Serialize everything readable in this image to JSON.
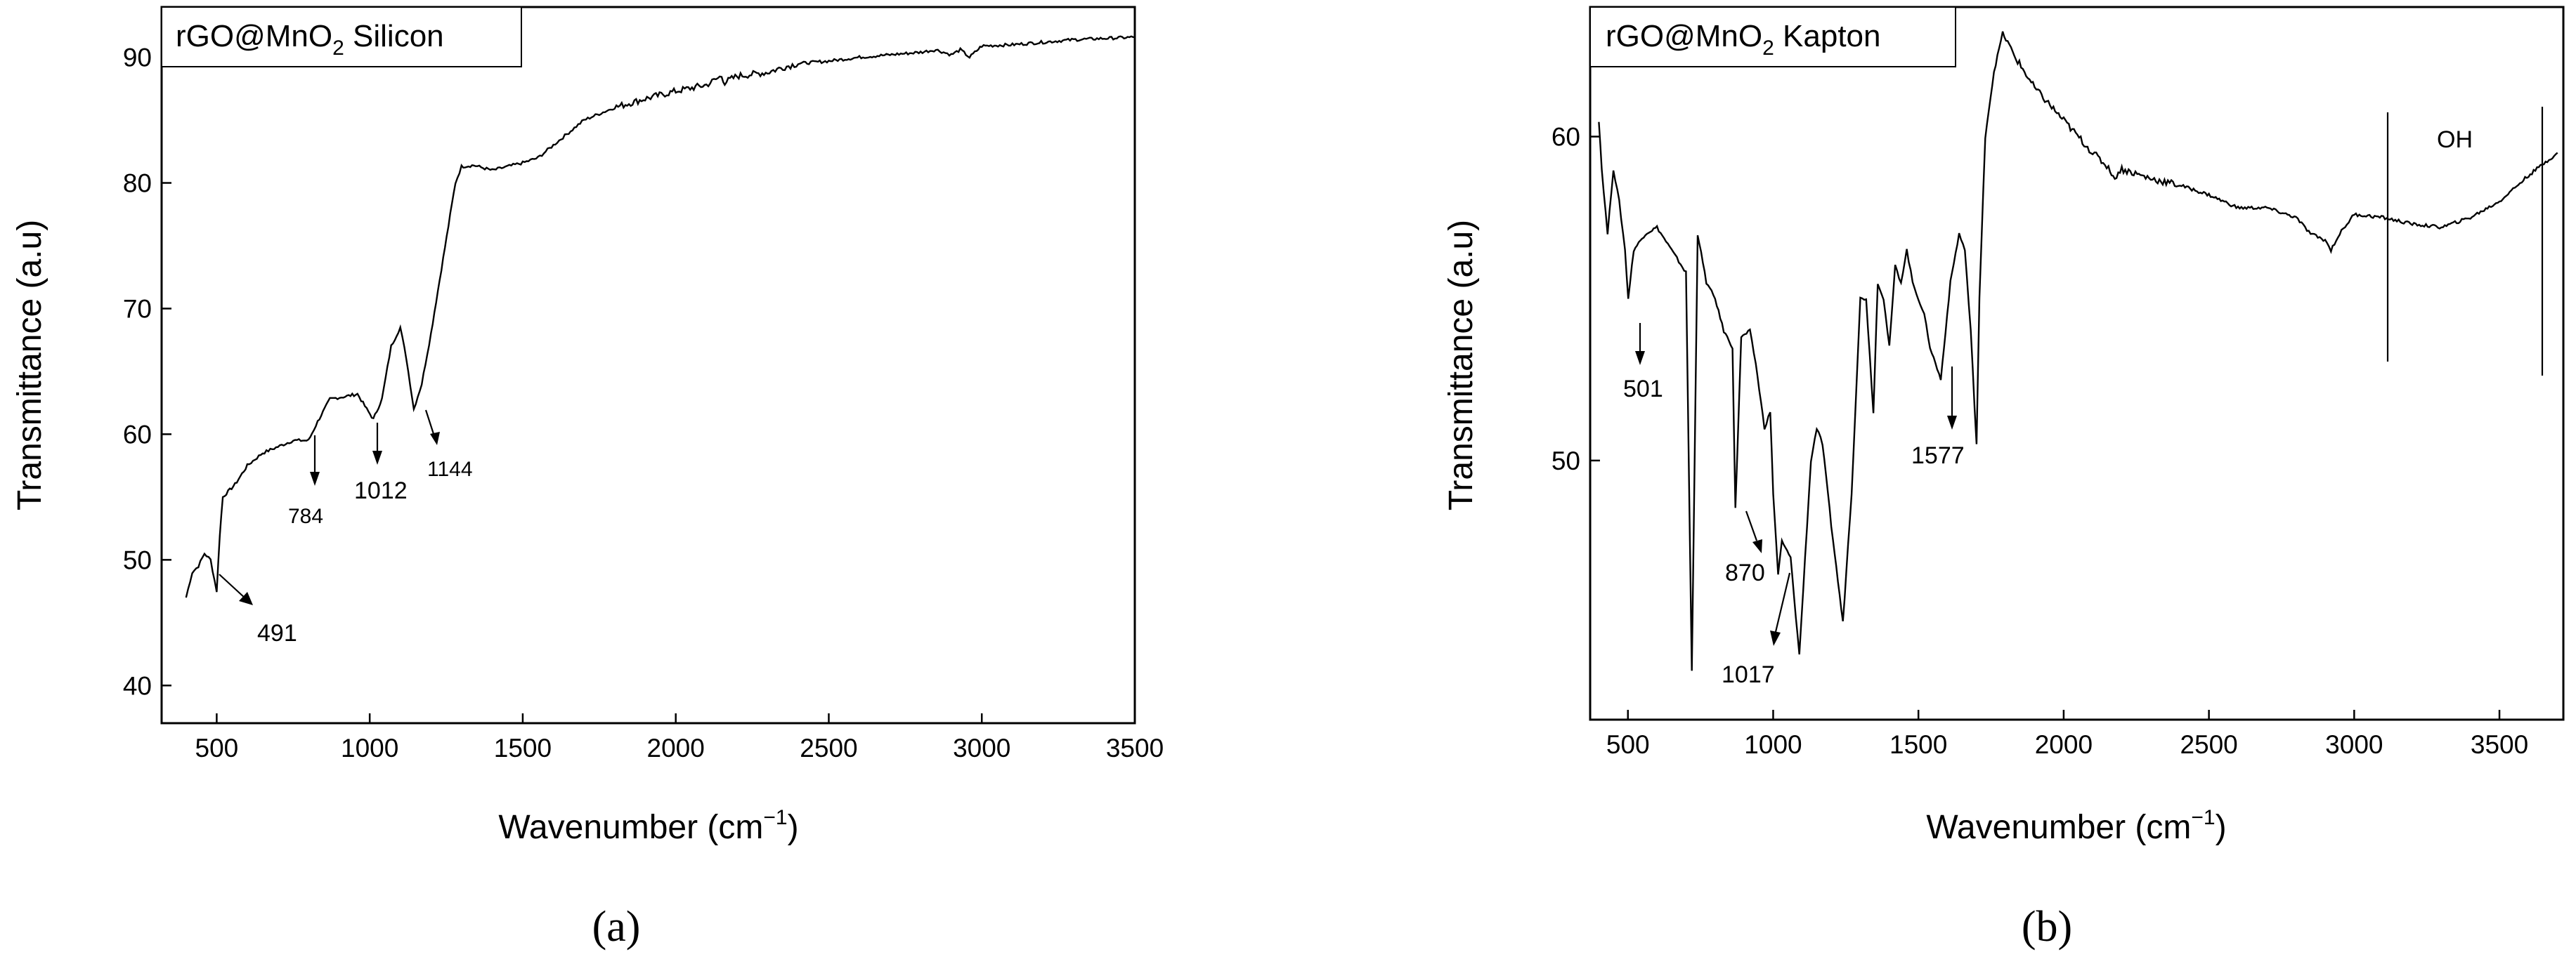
{
  "chart_data": [
    {
      "type": "line",
      "panel_label": "(a)",
      "title": "rGO@MnO2 Silicon",
      "title_main": "rGO@MnO",
      "title_sub": "2",
      "title_rest": " Silicon",
      "xlabel": "Wavenumber (cm−1)",
      "xlabel_main": "Wavenumber (cm",
      "xlabel_sup": "−1",
      "xlabel_close": ")",
      "ylabel": "Transmittance (a.u)",
      "xlim": [
        320,
        3500
      ],
      "ylim": [
        37,
        94
      ],
      "xticks": [
        500,
        1000,
        1500,
        2000,
        2500,
        3000,
        3500
      ],
      "yticks": [
        40,
        50,
        60,
        70,
        80,
        90
      ],
      "x": [
        400,
        420,
        440,
        460,
        480,
        500,
        510,
        520,
        560,
        600,
        650,
        700,
        750,
        800,
        830,
        870,
        920,
        960,
        990,
        1012,
        1040,
        1070,
        1100,
        1120,
        1144,
        1170,
        1200,
        1240,
        1280,
        1300,
        1340,
        1400,
        1450,
        1500,
        1550,
        1600,
        1650,
        1700,
        1750,
        1800,
        1900,
        2000,
        2100,
        2150,
        2160,
        2200,
        2300,
        2350,
        2400,
        2500,
        2600,
        2700,
        2800,
        2850,
        2900,
        2930,
        2960,
        3000,
        3100,
        3200,
        3300,
        3400,
        3500
      ],
      "y": [
        47,
        49,
        49.5,
        50.5,
        50,
        47.5,
        52,
        55,
        56,
        57.5,
        58.5,
        59,
        59.5,
        59.5,
        61,
        62.8,
        63,
        63.2,
        62,
        61.2,
        62.8,
        67,
        68.5,
        66,
        62,
        64,
        68,
        74,
        80,
        81.3,
        81.4,
        81,
        81.3,
        81.6,
        82,
        83,
        84,
        85,
        85.5,
        86,
        86.7,
        87.3,
        87.8,
        88.5,
        88,
        88.5,
        88.8,
        89.2,
        89.5,
        89.7,
        90,
        90.2,
        90.4,
        90.6,
        90.2,
        90.6,
        90,
        90.9,
        91,
        91.2,
        91.4,
        91.5,
        91.6
      ],
      "annotations": [
        {
          "text": "491",
          "x": 490
        },
        {
          "text": "784",
          "x": 784
        },
        {
          "text": "1012",
          "x": 1012
        },
        {
          "text": "1144",
          "x": 1144
        }
      ]
    },
    {
      "type": "line",
      "panel_label": "(b)",
      "title": "rGO@MnO2 Kapton",
      "title_main": "rGO@MnO",
      "title_sub": "2",
      "title_rest": " Kapton",
      "xlabel": "Wavenumber (cm−1)",
      "xlabel_main": "Wavenumber (cm",
      "xlabel_sup": "−1",
      "xlabel_close": ")",
      "ylabel": "Transmittance (a.u)",
      "xlim": [
        370,
        3720
      ],
      "ylim": [
        42,
        64
      ],
      "xticks": [
        500,
        1000,
        1500,
        2000,
        2500,
        3000,
        3500
      ],
      "yticks": [
        50,
        60
      ],
      "x": [
        400,
        410,
        430,
        450,
        470,
        490,
        501,
        520,
        560,
        600,
        650,
        700,
        720,
        740,
        770,
        800,
        830,
        860,
        870,
        890,
        920,
        940,
        970,
        990,
        1000,
        1017,
        1030,
        1060,
        1090,
        1110,
        1130,
        1150,
        1170,
        1200,
        1240,
        1270,
        1300,
        1320,
        1345,
        1360,
        1380,
        1400,
        1420,
        1440,
        1460,
        1480,
        1500,
        1520,
        1540,
        1577,
        1610,
        1640,
        1660,
        1680,
        1700,
        1710,
        1730,
        1760,
        1790,
        1830,
        1900,
        2000,
        2100,
        2160,
        2170,
        2200,
        2300,
        2400,
        2500,
        2600,
        2700,
        2800,
        2850,
        2900,
        2920,
        2950,
        3000,
        3100,
        3200,
        3300,
        3400,
        3500,
        3600,
        3700
      ],
      "y": [
        60.5,
        59,
        57,
        59,
        58,
        56.5,
        55,
        56.5,
        57,
        57.2,
        56.5,
        55.8,
        43.5,
        57,
        55.5,
        55,
        54,
        53.5,
        48.5,
        53.8,
        54,
        53,
        51,
        51.5,
        49,
        46.5,
        47.5,
        47,
        44,
        47,
        50,
        51,
        50.5,
        48,
        45,
        49,
        55,
        55,
        51.5,
        55.5,
        55,
        53.5,
        56,
        55.5,
        56.5,
        55.5,
        55,
        54.5,
        53.5,
        52.5,
        55.5,
        57,
        56.5,
        54,
        50.5,
        55,
        60,
        62,
        63.2,
        62.5,
        61.5,
        60.5,
        59.5,
        59,
        58.7,
        59,
        58.7,
        58.5,
        58.2,
        57.8,
        57.8,
        57.5,
        57,
        56.8,
        56.5,
        57,
        57.6,
        57.5,
        57.3,
        57.2,
        57.5,
        58,
        58.8,
        59.5
      ],
      "annotations": [
        {
          "text": "501",
          "x": 501
        },
        {
          "text": "870",
          "x": 870
        },
        {
          "text": "1017",
          "x": 1017
        },
        {
          "text": "1577",
          "x": 1577
        },
        {
          "text": "OH",
          "x1": 3100,
          "x2": 3620
        }
      ]
    }
  ]
}
